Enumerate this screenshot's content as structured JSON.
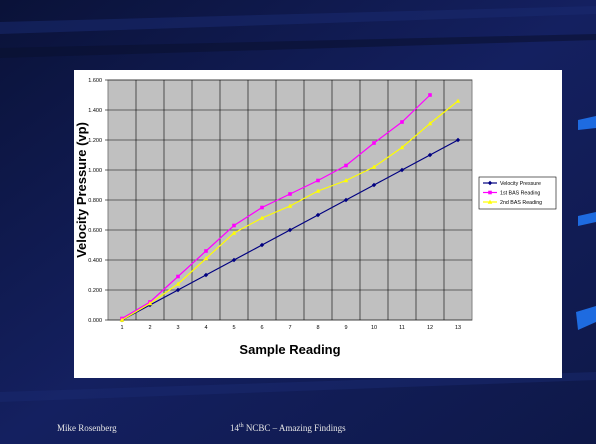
{
  "slide": {
    "footer_left": "Mike Rosenberg",
    "footer_ordinal_number": "14",
    "footer_ordinal_suffix": "th",
    "footer_center_rest": " NCBC – Amazing Findings",
    "background_color": "#101a4a",
    "accent_color": "#1e6be0"
  },
  "chart_data": {
    "type": "line",
    "title": "",
    "xlabel": "Sample Reading",
    "ylabel": "Velocity Pressure (vp)",
    "categories": [
      "1",
      "2",
      "3",
      "4",
      "5",
      "6",
      "7",
      "8",
      "9",
      "10",
      "11",
      "12",
      "13"
    ],
    "ylim": [
      0,
      1.6
    ],
    "yticks": [
      "0.000",
      "0.200",
      "0.400",
      "0.600",
      "0.800",
      "1.000",
      "1.200",
      "1.400",
      "1.600"
    ],
    "grid": true,
    "plot_background": "#c0c0c0",
    "legend_position": "right",
    "series": [
      {
        "name": "Velocity Pressure",
        "color": "#000080",
        "marker": "diamond",
        "values": [
          0.0,
          0.1,
          0.2,
          0.3,
          0.4,
          0.5,
          0.6,
          0.7,
          0.8,
          0.9,
          1.0,
          1.1,
          1.2
        ]
      },
      {
        "name": "1st BAS Reading",
        "color": "#ff00ff",
        "marker": "square",
        "values": [
          0.01,
          0.12,
          0.29,
          0.46,
          0.63,
          0.75,
          0.84,
          0.93,
          1.03,
          1.18,
          1.32,
          1.5,
          null
        ]
      },
      {
        "name": "2nd BAS Reading",
        "color": "#ffff00",
        "marker": "triangle",
        "values": [
          0.0,
          0.11,
          0.24,
          0.41,
          0.58,
          0.68,
          0.76,
          0.86,
          0.93,
          1.02,
          1.15,
          1.31,
          1.46
        ]
      }
    ]
  }
}
